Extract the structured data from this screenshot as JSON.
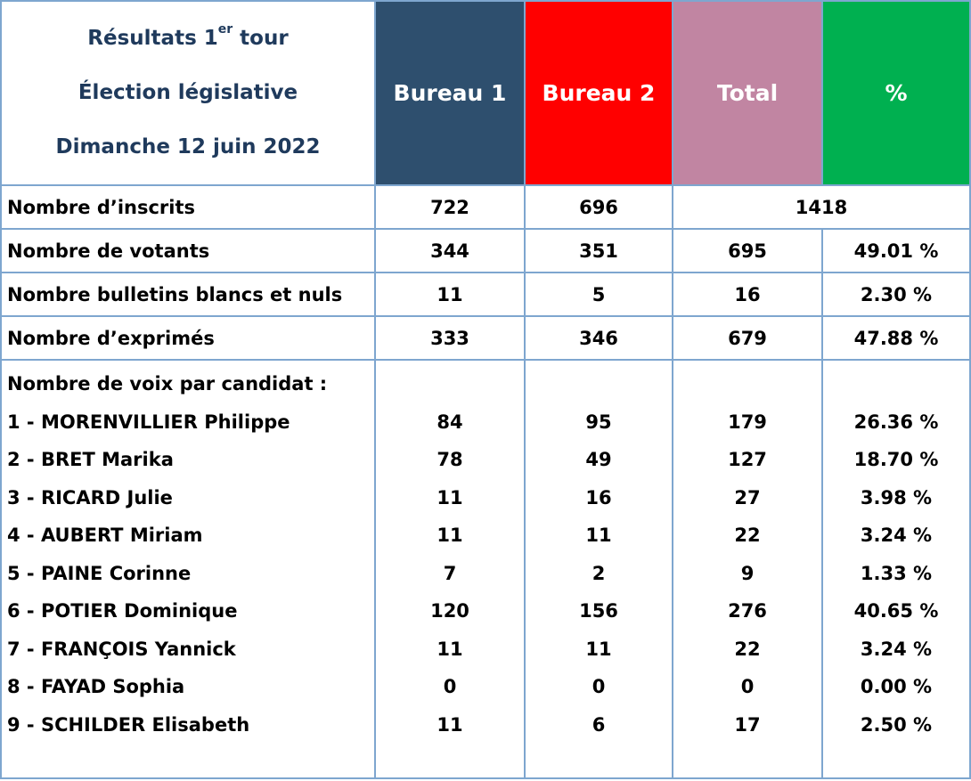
{
  "header": {
    "title_line1_prefix": "Résultats 1",
    "title_line1_sup": "er",
    "title_line1_suffix": " tour",
    "title_line2": "Élection législative",
    "title_line3": "Dimanche 12 juin 2022",
    "columns": [
      {
        "label": "Bureau 1",
        "color": "#2e4f6e"
      },
      {
        "label": "Bureau 2",
        "color": "#ff0000"
      },
      {
        "label": "Total",
        "color": "#c185a2"
      },
      {
        "label": "%",
        "color": "#00b050"
      }
    ]
  },
  "stats": {
    "inscrits": {
      "label": "Nombre d’inscrits",
      "b1": "722",
      "b2": "696",
      "total": "1418"
    },
    "votants": {
      "label": "Nombre de votants",
      "b1": "344",
      "b2": "351",
      "total": "695",
      "pct": "49.01 %"
    },
    "blancs": {
      "label": "Nombre bulletins blancs et nuls",
      "b1": "11",
      "b2": "5",
      "total": "16",
      "pct": "2.30 %"
    },
    "exprimes": {
      "label": "Nombre d’exprimés",
      "b1": "333",
      "b2": "346",
      "total": "679",
      "pct": "47.88 %"
    }
  },
  "candidates_heading": "Nombre de voix par candidat :",
  "candidates": [
    {
      "name": "1 - MORENVILLIER Philippe",
      "b1": "84",
      "b2": "95",
      "total": "179",
      "pct": "26.36 %"
    },
    {
      "name": "2 - BRET Marika",
      "b1": "78",
      "b2": "49",
      "total": "127",
      "pct": "18.70 %"
    },
    {
      "name": "3 - RICARD Julie",
      "b1": "11",
      "b2": "16",
      "total": "27",
      "pct": "3.98 %"
    },
    {
      "name": "4 - AUBERT Miriam",
      "b1": "11",
      "b2": "11",
      "total": "22",
      "pct": "3.24 %"
    },
    {
      "name": "5 - PAINE Corinne",
      "b1": "7",
      "b2": "2",
      "total": "9",
      "pct": "1.33 %"
    },
    {
      "name": "6 - POTIER Dominique",
      "b1": "120",
      "b2": "156",
      "total": "276",
      "pct": "40.65 %"
    },
    {
      "name": "7 - FRANÇOIS Yannick",
      "b1": "11",
      "b2": "11",
      "total": "22",
      "pct": "3.24 %"
    },
    {
      "name": "8 - FAYAD Sophia",
      "b1": "0",
      "b2": "0",
      "total": "0",
      "pct": "0.00 %"
    },
    {
      "name": "9 - SCHILDER Elisabeth",
      "b1": "11",
      "b2": "6",
      "total": "17",
      "pct": "2.50 %"
    }
  ]
}
